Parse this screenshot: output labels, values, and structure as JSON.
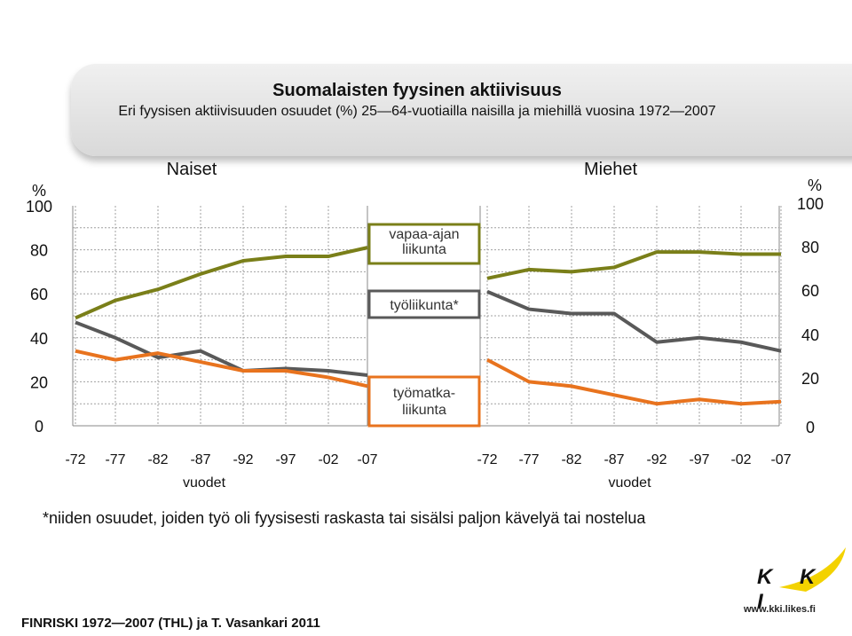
{
  "header": {
    "title": "Suomalaisten fyysinen aktiivisuus",
    "subtitle": "Eri fyysisen aktiivisuuden osuudet (%) 25—64-vuotiailla naisilla ja miehillä vuosina 1972—2007"
  },
  "colors": {
    "vapaa_ajan": "#7a7f19",
    "tyoliikunta": "#595959",
    "tyomatka": "#e8731e",
    "grid": "#a0a0a0",
    "title_box": "#e4e4e4",
    "logo_yellow": "#f3d200"
  },
  "chart_data": [
    {
      "type": "line",
      "title": "Naiset",
      "ylabel": "%",
      "xlabel": "vuodet",
      "ylim": [
        0,
        100
      ],
      "yticks": [
        "0",
        "20",
        "40",
        "60",
        "80",
        "100"
      ],
      "categories": [
        "-72",
        "-77",
        "-82",
        "-87",
        "-92",
        "-97",
        "-02",
        "-07"
      ],
      "series": [
        {
          "name": "vapaa-ajan liikunta",
          "key": "vapaa_ajan",
          "values": [
            49,
            57,
            62,
            69,
            75,
            77,
            77,
            81
          ]
        },
        {
          "name": "työliikunta*",
          "key": "tyoliikunta",
          "values": [
            47,
            40,
            31,
            34,
            25,
            26,
            25,
            23
          ]
        },
        {
          "name": "työmatka-liikunta",
          "key": "tyomatka",
          "values": [
            34,
            30,
            33,
            29,
            25,
            25,
            22,
            18
          ]
        }
      ]
    },
    {
      "type": "line",
      "title": "Miehet",
      "ylabel": "%",
      "xlabel": "vuodet",
      "ylim": [
        0,
        100
      ],
      "yticks": [
        "0",
        "20",
        "40",
        "60",
        "80",
        "100"
      ],
      "categories": [
        "-72",
        "-77",
        "-82",
        "-87",
        "-92",
        "-97",
        "-02",
        "-07"
      ],
      "series": [
        {
          "name": "vapaa-ajan liikunta",
          "key": "vapaa_ajan",
          "values": [
            67,
            71,
            70,
            72,
            79,
            79,
            78,
            78
          ]
        },
        {
          "name": "työliikunta*",
          "key": "tyoliikunta",
          "values": [
            61,
            53,
            51,
            51,
            38,
            40,
            38,
            34
          ]
        },
        {
          "name": "työmatka-liikunta",
          "key": "tyomatka",
          "values": [
            30,
            20,
            18,
            14,
            10,
            12,
            10,
            11
          ]
        }
      ]
    }
  ],
  "legend": {
    "vapaa_ajan": [
      "vapaa-ajan",
      "liikunta"
    ],
    "tyoliikunta": [
      "työliikunta*"
    ],
    "tyomatka": [
      "työmatka-",
      "liikunta"
    ]
  },
  "footnote": "*niiden osuudet, joiden työ oli fyysisesti raskasta tai sisälsi paljon kävelyä tai nostelua",
  "source": "FINRISKI 1972—2007 (THL) ja T. Vasankari 2011",
  "logo": {
    "text": "K K I",
    "url": "www.kki.likes.fi"
  }
}
